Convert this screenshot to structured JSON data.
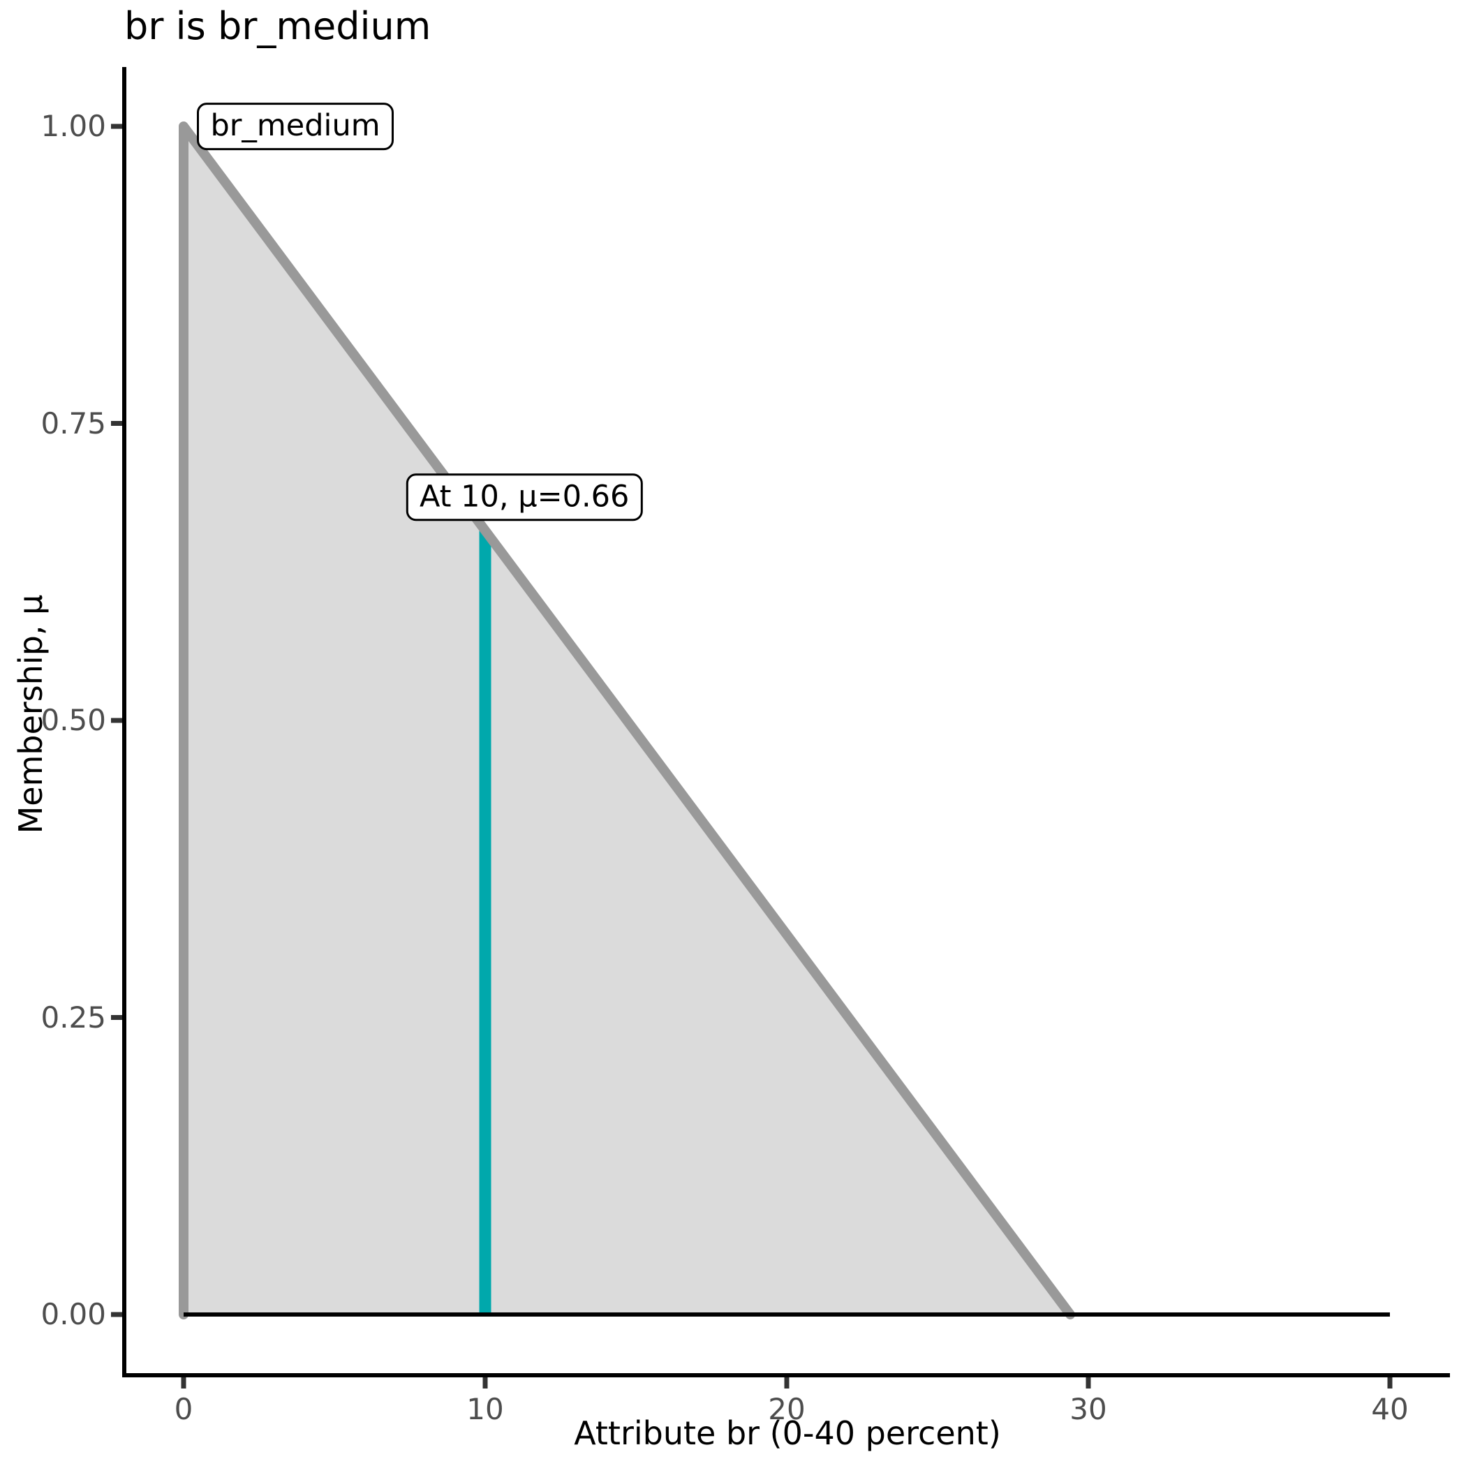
{
  "chart_data": {
    "type": "area",
    "title": "br is br_medium",
    "xlabel": "Attribute br (0-40 percent)",
    "ylabel": "Membership, μ",
    "xlim": [
      0,
      40
    ],
    "ylim": [
      0,
      1
    ],
    "x_ticks": [
      "0",
      "10",
      "20",
      "30",
      "40"
    ],
    "x_tick_values": [
      0,
      10,
      20,
      30,
      40
    ],
    "y_ticks": [
      "0.00",
      "0.25",
      "0.50",
      "0.75",
      "1.00"
    ],
    "y_tick_values": [
      0,
      0.25,
      0.5,
      0.75,
      1
    ],
    "grid": false,
    "legend_position": "none",
    "series": [
      {
        "name": "br_medium",
        "description": "triangular fuzzy membership function, peak at x=0 with mu=1, decreasing linearly to mu=0 at x=29.4",
        "fill_points_x": [
          0,
          0,
          29.4,
          40
        ],
        "fill_points_mu": [
          0,
          1,
          0,
          0
        ],
        "outline_points_x": [
          0,
          0,
          29.4
        ],
        "outline_points_mu": [
          0,
          1,
          0
        ],
        "fill_color": "#DBDBDB",
        "line_color": "#999999"
      }
    ],
    "baseline": {
      "mu": 0,
      "x_from": 0,
      "x_to": 40,
      "color": "#000000"
    },
    "highlight_line": {
      "x": 10,
      "mu_from": 0,
      "mu_to": 0.66,
      "color": "#00A8AC"
    },
    "annotations": [
      {
        "text": "br_medium",
        "x": 0.45,
        "mu": 1.0,
        "anchor": "left-middle"
      },
      {
        "text": "At 10, μ=0.66",
        "x": 11.3,
        "mu": 0.668,
        "anchor": "center-bottom"
      }
    ],
    "colors": {
      "axis_line": "#000000",
      "tick_mark": "#333333",
      "tick_label": "#4D4D4D",
      "text": "#000000",
      "background": "#FFFFFF"
    }
  }
}
